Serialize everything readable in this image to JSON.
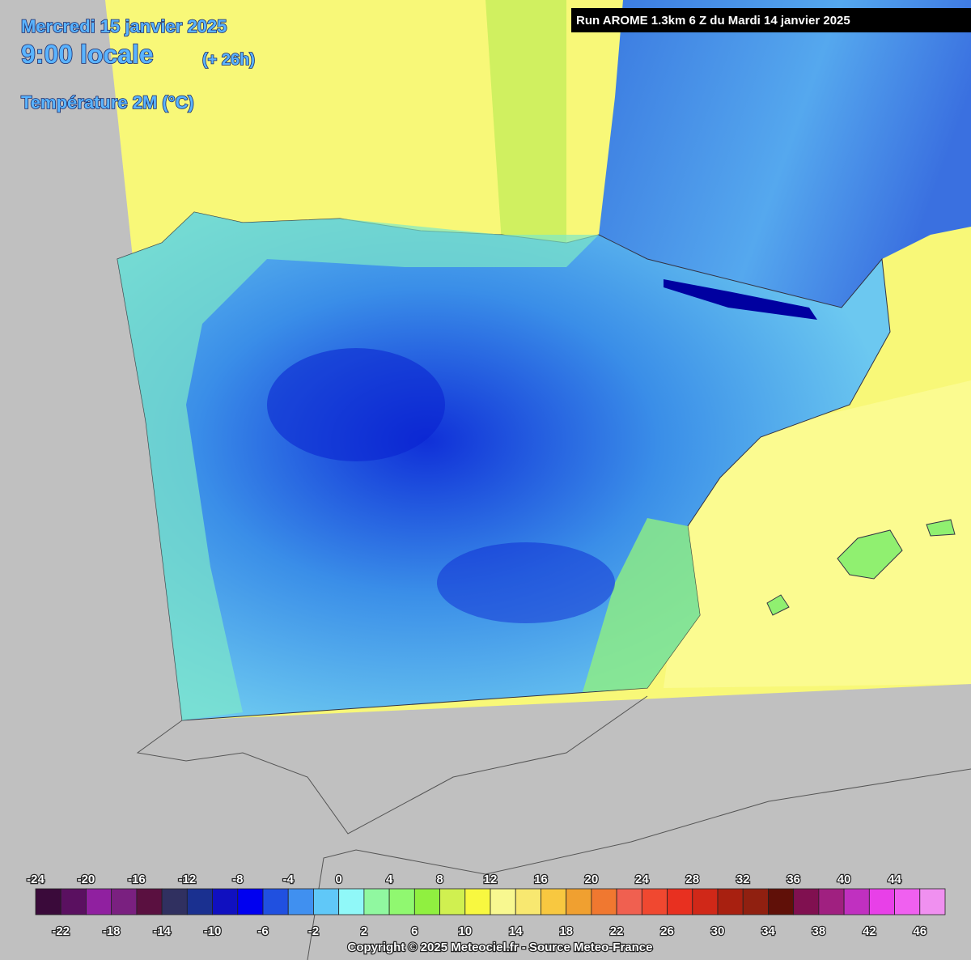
{
  "header": {
    "date": "Mercredi 15 janvier 2025",
    "time": "9:00 locale",
    "lead": "(+ 26h)",
    "variable": "Température 2M (°C)"
  },
  "run": "Run AROME 1.3km 6 Z du Mardi 14 janvier 2025",
  "legend": {
    "range": [
      -24,
      48
    ],
    "colors": [
      "#3a0a3a",
      "#5a1060",
      "#9020a0",
      "#7a2080",
      "#5a1040",
      "#303060",
      "#1a3090",
      "#1010c0",
      "#0000f0",
      "#2050e0",
      "#4090f0",
      "#60c8f8",
      "#90f8f8",
      "#90f8a0",
      "#90f870",
      "#90f040",
      "#d0f050",
      "#f8f840",
      "#f8f890",
      "#f8e870",
      "#f8c840",
      "#f0a030",
      "#f07830",
      "#f06050",
      "#f04830",
      "#e83020",
      "#d02818",
      "#a82010",
      "#902010",
      "#601008",
      "#801050",
      "#a02080",
      "#c030c0",
      "#e840e8",
      "#f060f0",
      "#f090f0"
    ],
    "ticks_top": [
      -24,
      -20,
      -16,
      -12,
      -8,
      -4,
      0,
      4,
      8,
      12,
      16,
      20,
      24,
      28,
      32,
      36,
      40,
      44
    ],
    "ticks_bottom": [
      -22,
      -18,
      -14,
      -10,
      -6,
      -2,
      2,
      6,
      10,
      14,
      18,
      22,
      26,
      30,
      34,
      38,
      42,
      46
    ]
  },
  "copyright": "Copyright © 2025 Meteociel.fr - Source Meteo-France"
}
